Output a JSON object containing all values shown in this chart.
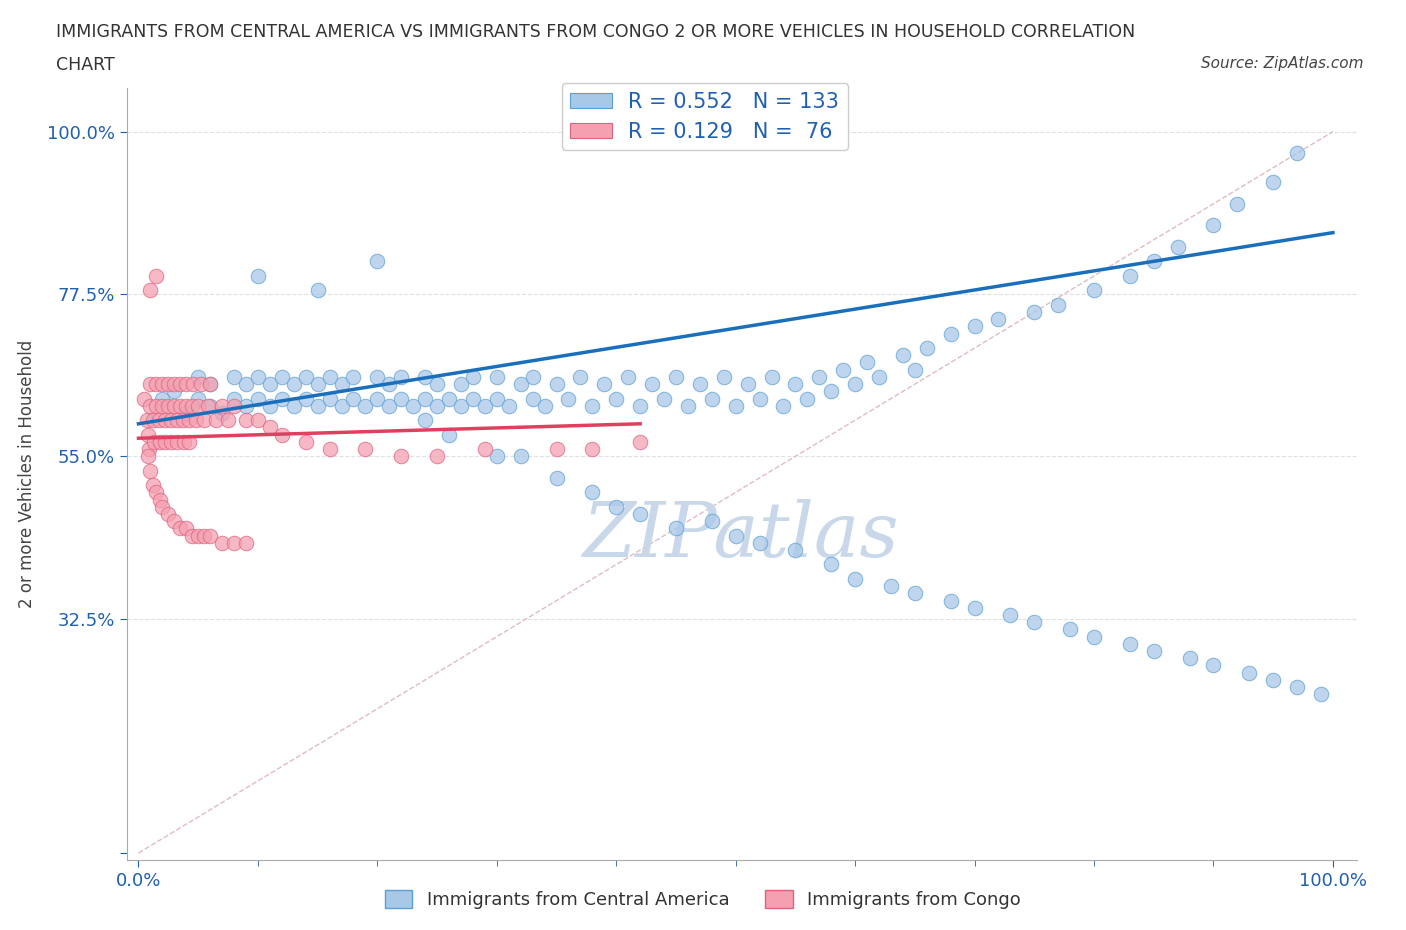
{
  "title_line1": "IMMIGRANTS FROM CENTRAL AMERICA VS IMMIGRANTS FROM CONGO 2 OR MORE VEHICLES IN HOUSEHOLD CORRELATION",
  "title_line2": "CHART",
  "source_text": "Source: ZipAtlas.com",
  "ylabel": "2 or more Vehicles in Household",
  "color_blue": "#a8c8e8",
  "color_pink": "#f4a0b0",
  "color_blue_edge": "#5a9fd4",
  "color_pink_edge": "#e06080",
  "color_blue_line": "#1a6fbd",
  "color_pink_line": "#e04060",
  "color_diag": "#d0a0a8",
  "color_grid": "#cccccc",
  "watermark_color": "#c8d8ea",
  "blue_line_x0": 0.0,
  "blue_line_y0": 0.595,
  "blue_line_x1": 1.0,
  "blue_line_y1": 0.86,
  "pink_line_x0": 0.0,
  "pink_line_y0": 0.575,
  "pink_line_x1": 0.42,
  "pink_line_y1": 0.595,
  "ytick_positions": [
    0.0,
    0.325,
    0.55,
    0.775,
    1.0
  ],
  "ytick_labels": [
    "",
    "32.5%",
    "55.0%",
    "77.5%",
    "100.0%"
  ],
  "xtick_positions": [
    0.0,
    1.0
  ],
  "xtick_labels": [
    "0.0%",
    "100.0%"
  ],
  "blue_x": [
    0.02,
    0.03,
    0.04,
    0.05,
    0.05,
    0.06,
    0.06,
    0.07,
    0.08,
    0.08,
    0.09,
    0.09,
    0.1,
    0.1,
    0.11,
    0.11,
    0.12,
    0.12,
    0.13,
    0.13,
    0.14,
    0.14,
    0.15,
    0.15,
    0.16,
    0.16,
    0.17,
    0.17,
    0.18,
    0.18,
    0.19,
    0.2,
    0.2,
    0.21,
    0.21,
    0.22,
    0.22,
    0.23,
    0.24,
    0.24,
    0.25,
    0.25,
    0.26,
    0.27,
    0.27,
    0.28,
    0.28,
    0.29,
    0.3,
    0.3,
    0.31,
    0.32,
    0.33,
    0.33,
    0.34,
    0.35,
    0.36,
    0.37,
    0.38,
    0.39,
    0.4,
    0.41,
    0.42,
    0.43,
    0.44,
    0.45,
    0.46,
    0.47,
    0.48,
    0.49,
    0.5,
    0.51,
    0.52,
    0.53,
    0.54,
    0.55,
    0.56,
    0.57,
    0.58,
    0.59,
    0.6,
    0.61,
    0.62,
    0.64,
    0.65,
    0.66,
    0.68,
    0.7,
    0.72,
    0.75,
    0.77,
    0.8,
    0.83,
    0.85,
    0.87,
    0.9,
    0.92,
    0.95,
    0.97,
    0.24,
    0.26,
    0.3,
    0.32,
    0.35,
    0.38,
    0.4,
    0.42,
    0.45,
    0.48,
    0.5,
    0.52,
    0.55,
    0.58,
    0.6,
    0.63,
    0.65,
    0.68,
    0.7,
    0.73,
    0.75,
    0.78,
    0.8,
    0.83,
    0.85,
    0.88,
    0.9,
    0.93,
    0.95,
    0.97,
    0.99,
    0.1,
    0.15,
    0.2
  ],
  "blue_y": [
    0.63,
    0.64,
    0.61,
    0.63,
    0.66,
    0.62,
    0.65,
    0.61,
    0.63,
    0.66,
    0.62,
    0.65,
    0.63,
    0.66,
    0.62,
    0.65,
    0.63,
    0.66,
    0.62,
    0.65,
    0.63,
    0.66,
    0.62,
    0.65,
    0.63,
    0.66,
    0.62,
    0.65,
    0.63,
    0.66,
    0.62,
    0.63,
    0.66,
    0.62,
    0.65,
    0.63,
    0.66,
    0.62,
    0.63,
    0.66,
    0.62,
    0.65,
    0.63,
    0.62,
    0.65,
    0.63,
    0.66,
    0.62,
    0.63,
    0.66,
    0.62,
    0.65,
    0.63,
    0.66,
    0.62,
    0.65,
    0.63,
    0.66,
    0.62,
    0.65,
    0.63,
    0.66,
    0.62,
    0.65,
    0.63,
    0.66,
    0.62,
    0.65,
    0.63,
    0.66,
    0.62,
    0.65,
    0.63,
    0.66,
    0.62,
    0.65,
    0.63,
    0.66,
    0.64,
    0.67,
    0.65,
    0.68,
    0.66,
    0.69,
    0.67,
    0.7,
    0.72,
    0.73,
    0.74,
    0.75,
    0.76,
    0.78,
    0.8,
    0.82,
    0.84,
    0.87,
    0.9,
    0.93,
    0.97,
    0.6,
    0.58,
    0.55,
    0.55,
    0.52,
    0.5,
    0.48,
    0.47,
    0.45,
    0.46,
    0.44,
    0.43,
    0.42,
    0.4,
    0.38,
    0.37,
    0.36,
    0.35,
    0.34,
    0.33,
    0.32,
    0.31,
    0.3,
    0.29,
    0.28,
    0.27,
    0.26,
    0.25,
    0.24,
    0.23,
    0.22,
    0.8,
    0.78,
    0.82
  ],
  "pink_x": [
    0.005,
    0.007,
    0.008,
    0.009,
    0.01,
    0.01,
    0.012,
    0.013,
    0.015,
    0.015,
    0.017,
    0.018,
    0.02,
    0.02,
    0.022,
    0.022,
    0.025,
    0.025,
    0.027,
    0.027,
    0.03,
    0.03,
    0.032,
    0.032,
    0.035,
    0.035,
    0.037,
    0.038,
    0.04,
    0.04,
    0.042,
    0.042,
    0.045,
    0.046,
    0.048,
    0.05,
    0.052,
    0.055,
    0.058,
    0.06,
    0.065,
    0.07,
    0.075,
    0.08,
    0.09,
    0.1,
    0.11,
    0.12,
    0.14,
    0.16,
    0.19,
    0.22,
    0.25,
    0.29,
    0.35,
    0.38,
    0.42,
    0.008,
    0.01,
    0.012,
    0.015,
    0.018,
    0.02,
    0.025,
    0.03,
    0.035,
    0.04,
    0.045,
    0.05,
    0.055,
    0.06,
    0.07,
    0.08,
    0.09,
    0.01,
    0.015
  ],
  "pink_y": [
    0.63,
    0.6,
    0.58,
    0.56,
    0.62,
    0.65,
    0.6,
    0.57,
    0.62,
    0.65,
    0.6,
    0.57,
    0.62,
    0.65,
    0.6,
    0.57,
    0.62,
    0.65,
    0.6,
    0.57,
    0.62,
    0.65,
    0.6,
    0.57,
    0.62,
    0.65,
    0.6,
    0.57,
    0.62,
    0.65,
    0.6,
    0.57,
    0.62,
    0.65,
    0.6,
    0.62,
    0.65,
    0.6,
    0.62,
    0.65,
    0.6,
    0.62,
    0.6,
    0.62,
    0.6,
    0.6,
    0.59,
    0.58,
    0.57,
    0.56,
    0.56,
    0.55,
    0.55,
    0.56,
    0.56,
    0.56,
    0.57,
    0.55,
    0.53,
    0.51,
    0.5,
    0.49,
    0.48,
    0.47,
    0.46,
    0.45,
    0.45,
    0.44,
    0.44,
    0.44,
    0.44,
    0.43,
    0.43,
    0.43,
    0.78,
    0.8
  ]
}
